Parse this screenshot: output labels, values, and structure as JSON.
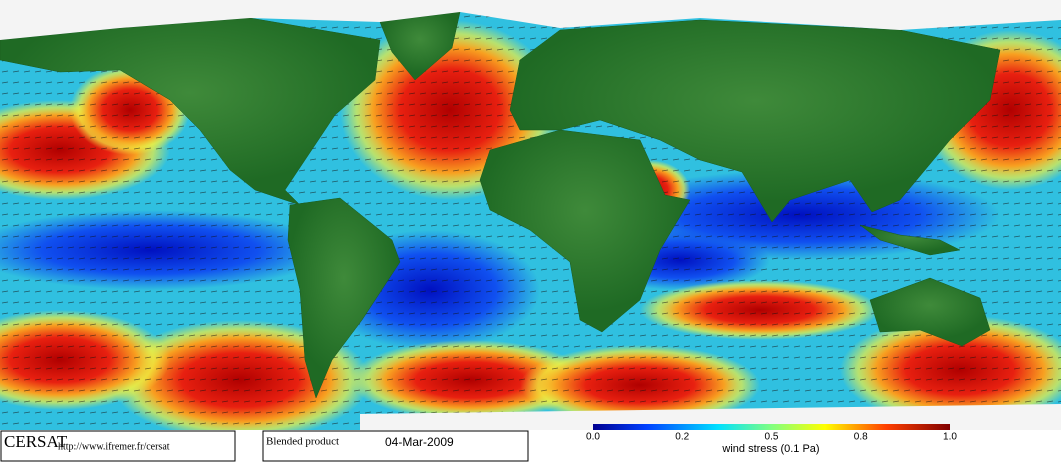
{
  "logo": {
    "name": "CERSAT",
    "url": "http://www.ifremer.fr/cersat"
  },
  "product": {
    "label": "Blended product",
    "date": "04-Mar-2009"
  },
  "colorbar": {
    "ticks": [
      "0.0",
      "0.2",
      "0.5",
      "0.8",
      "1.0"
    ],
    "label": "wind stress (0.1 Pa)"
  }
}
